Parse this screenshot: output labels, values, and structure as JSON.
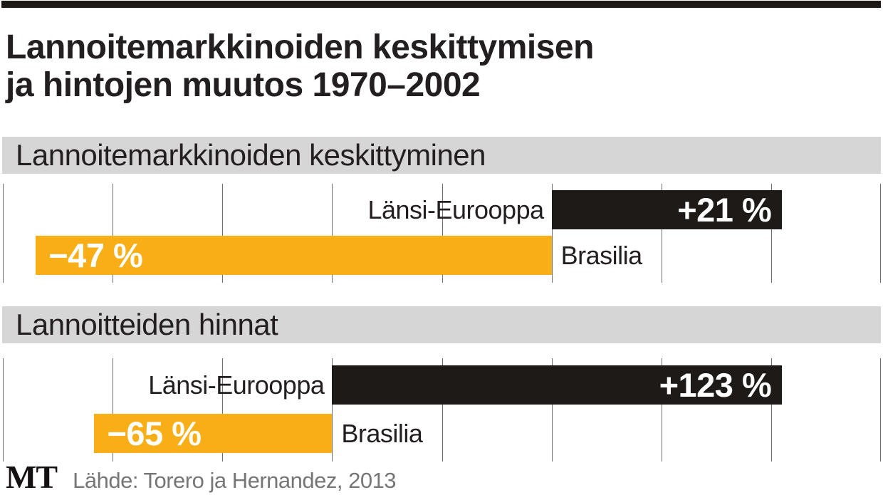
{
  "title": {
    "line1": "Lannoitemarkkinoiden keskittymisen",
    "line2": "ja hintojen muutos 1970–2002"
  },
  "colors": {
    "positive_bar": "#1e1a17",
    "negative_bar": "#f8af17",
    "section_band": "#d6d6d6",
    "gridline": "#6f6f6f",
    "text": "#231f20",
    "value_text": "#ffffff",
    "source_text": "#767676"
  },
  "chart_data": [
    {
      "type": "bar",
      "orientation": "horizontal",
      "title": "Lannoitemarkkinoiden keskittyminen",
      "categories": [
        "Länsi-Eurooppa",
        "Brasilia"
      ],
      "values": [
        21,
        -47
      ],
      "labels": [
        "+21 %",
        "−47 %"
      ],
      "xlim": [
        -50,
        30
      ],
      "gridline_step": 10,
      "grid": "on",
      "legend": "none"
    },
    {
      "type": "bar",
      "orientation": "horizontal",
      "title": "Lannoitteiden hinnat",
      "categories": [
        "Länsi-Eurooppa",
        "Brasilia"
      ],
      "values": [
        123,
        -65
      ],
      "labels": [
        "+123 %",
        "−65 %"
      ],
      "xlim": [
        -90,
        150
      ],
      "gridline_step": 30,
      "grid": "on",
      "legend": "none"
    }
  ],
  "footer": {
    "logo": "MT",
    "source": "Lähde: Torero ja Hernandez, 2013"
  }
}
